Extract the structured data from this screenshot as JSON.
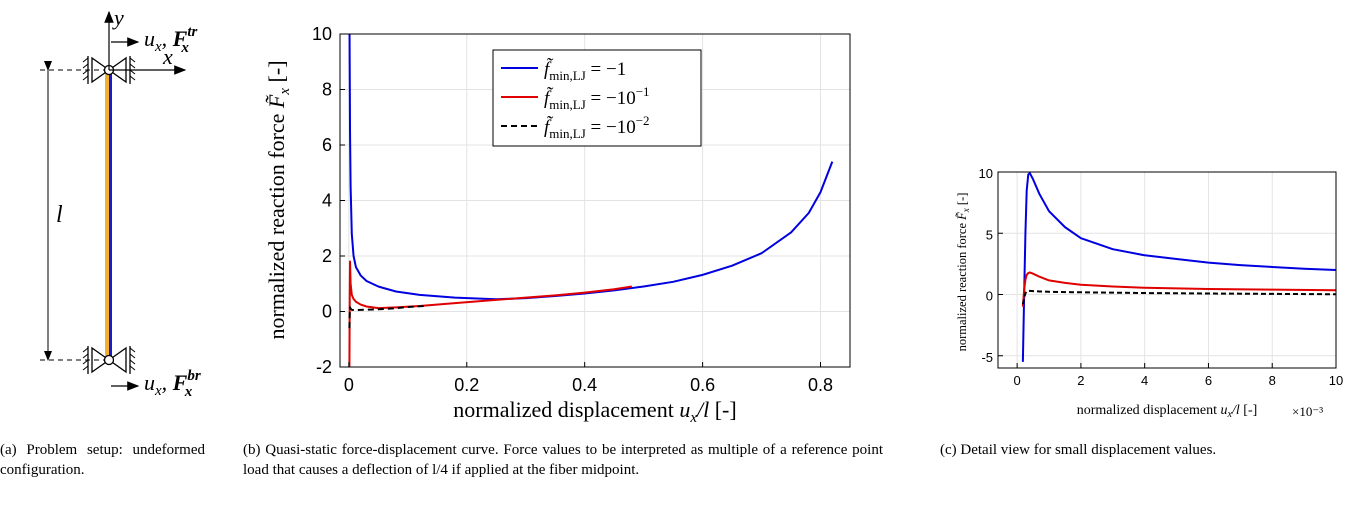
{
  "panel_a": {
    "label_y": "y",
    "label_x": "x",
    "label_l": "l",
    "top_disp": "u",
    "top_disp_sub": "x",
    "top_force": "F",
    "top_force_sub": "x",
    "top_force_sup": "tr",
    "bottom_disp": "u",
    "bottom_disp_sub": "x",
    "bottom_force": "F",
    "bottom_force_sub": "x",
    "bottom_force_sup": "br",
    "fiber_color_left": "#f0b030",
    "fiber_color_right": "#1a1ad0",
    "caption": "(a) Problem setup: undeformed configuration."
  },
  "chart_data": [
    {
      "type": "line",
      "id": "b",
      "xlabel": "normalized displacement u_x/l [-]",
      "ylabel": "normalized reaction force F̃_x [-]",
      "xlim": [
        -0.015,
        0.85
      ],
      "ylim": [
        -2,
        10
      ],
      "xticks": [
        "0",
        "0.2",
        "0.4",
        "0.6",
        "0.8"
      ],
      "xtick_values": [
        0,
        0.2,
        0.4,
        0.6,
        0.8
      ],
      "yticks": [
        "-2",
        "0",
        "2",
        "4",
        "6",
        "8",
        "10"
      ],
      "ytick_values": [
        -2,
        0,
        2,
        4,
        6,
        8,
        10
      ],
      "grid": true,
      "legend_position": "top-center",
      "series": [
        {
          "name": "f̃_min,LJ = −1",
          "color": "#0000e0",
          "dash": "",
          "x": [
            0.0012,
            0.002,
            0.003,
            0.005,
            0.008,
            0.012,
            0.02,
            0.03,
            0.05,
            0.08,
            0.12,
            0.18,
            0.25,
            0.3,
            0.35,
            0.4,
            0.45,
            0.5,
            0.55,
            0.6,
            0.65,
            0.7,
            0.75,
            0.78,
            0.8,
            0.82
          ],
          "y": [
            10,
            6.5,
            4.5,
            2.8,
            2.0,
            1.6,
            1.3,
            1.1,
            0.9,
            0.72,
            0.6,
            0.5,
            0.44,
            0.48,
            0.56,
            0.65,
            0.76,
            0.9,
            1.07,
            1.32,
            1.65,
            2.1,
            2.85,
            3.55,
            4.3,
            5.4
          ]
        },
        {
          "name": "f̃_min,LJ = −10⁻¹",
          "color": "#e00000",
          "dash": "",
          "x": [
            0.001,
            0.0015,
            0.002,
            0.003,
            0.005,
            0.008,
            0.012,
            0.02,
            0.03,
            0.05,
            0.08,
            0.12,
            0.18,
            0.25,
            0.3,
            0.35,
            0.4,
            0.45,
            0.48
          ],
          "y": [
            -2,
            0.5,
            1.8,
            1.0,
            0.6,
            0.45,
            0.35,
            0.25,
            0.18,
            0.12,
            0.15,
            0.2,
            0.3,
            0.42,
            0.5,
            0.58,
            0.68,
            0.8,
            0.9
          ]
        },
        {
          "name": "f̃_min,LJ = −10⁻²",
          "color": "#000000",
          "dash": "6,4",
          "x": [
            0.001,
            0.0015,
            0.002,
            0.003,
            0.005,
            0.01,
            0.02,
            0.04,
            0.06,
            0.08,
            0.1,
            0.13
          ],
          "y": [
            -0.6,
            -0.1,
            0.15,
            0.1,
            0.06,
            0.05,
            0.06,
            0.07,
            0.09,
            0.12,
            0.16,
            0.2
          ]
        }
      ],
      "caption": "(b) Quasi-static force-displacement curve. Force values to be interpreted as multiple of a reference point load that causes a deflection of l/4 if applied at the fiber midpoint."
    },
    {
      "type": "line",
      "id": "c",
      "xlabel": "normalized displacement u_x/l [-]",
      "ylabel": "normalized reaction force F̃_x [-]",
      "x_exponent": "×10⁻³",
      "xlim": [
        -0.6,
        10
      ],
      "ylim": [
        -6,
        10
      ],
      "xticks": [
        "0",
        "2",
        "4",
        "6",
        "8",
        "10"
      ],
      "xtick_values": [
        0,
        2,
        4,
        6,
        8,
        10
      ],
      "yticks": [
        "-5",
        "0",
        "5",
        "10"
      ],
      "ytick_values": [
        -5,
        0,
        5,
        10
      ],
      "grid": true,
      "series": [
        {
          "name": "f̃_min,LJ = −1",
          "color": "#0000e0",
          "dash": "",
          "x": [
            0.18,
            0.22,
            0.26,
            0.3,
            0.35,
            0.4,
            0.5,
            0.7,
            1.0,
            1.5,
            2.0,
            3.0,
            4.0,
            5.0,
            6.0,
            7.0,
            8.0,
            9.0,
            10.0
          ],
          "y": [
            -5.5,
            0,
            5,
            8.5,
            9.8,
            9.9,
            9.4,
            8.2,
            6.8,
            5.5,
            4.6,
            3.7,
            3.2,
            2.9,
            2.6,
            2.4,
            2.25,
            2.1,
            2.0
          ]
        },
        {
          "name": "f̃_min,LJ = −10⁻¹",
          "color": "#e00000",
          "dash": "",
          "x": [
            0.18,
            0.22,
            0.26,
            0.3,
            0.35,
            0.4,
            0.5,
            0.7,
            1.0,
            1.5,
            2.0,
            3.0,
            4.0,
            6.0,
            8.0,
            10.0
          ],
          "y": [
            -1.0,
            0.4,
            1.2,
            1.6,
            1.75,
            1.8,
            1.7,
            1.45,
            1.15,
            0.95,
            0.8,
            0.65,
            0.55,
            0.45,
            0.4,
            0.35
          ]
        },
        {
          "name": "f̃_min,LJ = −10⁻²",
          "color": "#000000",
          "dash": "5,3",
          "x": [
            0.18,
            0.22,
            0.26,
            0.3,
            0.35,
            0.4,
            0.5,
            0.7,
            1.0,
            2.0,
            4.0,
            6.0,
            8.0,
            10.0
          ],
          "y": [
            -0.8,
            -0.3,
            0.1,
            0.25,
            0.3,
            0.3,
            0.28,
            0.25,
            0.22,
            0.18,
            0.12,
            0.08,
            0.05,
            0.02
          ]
        }
      ],
      "caption": "(c) Detail view for small displacement values."
    }
  ]
}
